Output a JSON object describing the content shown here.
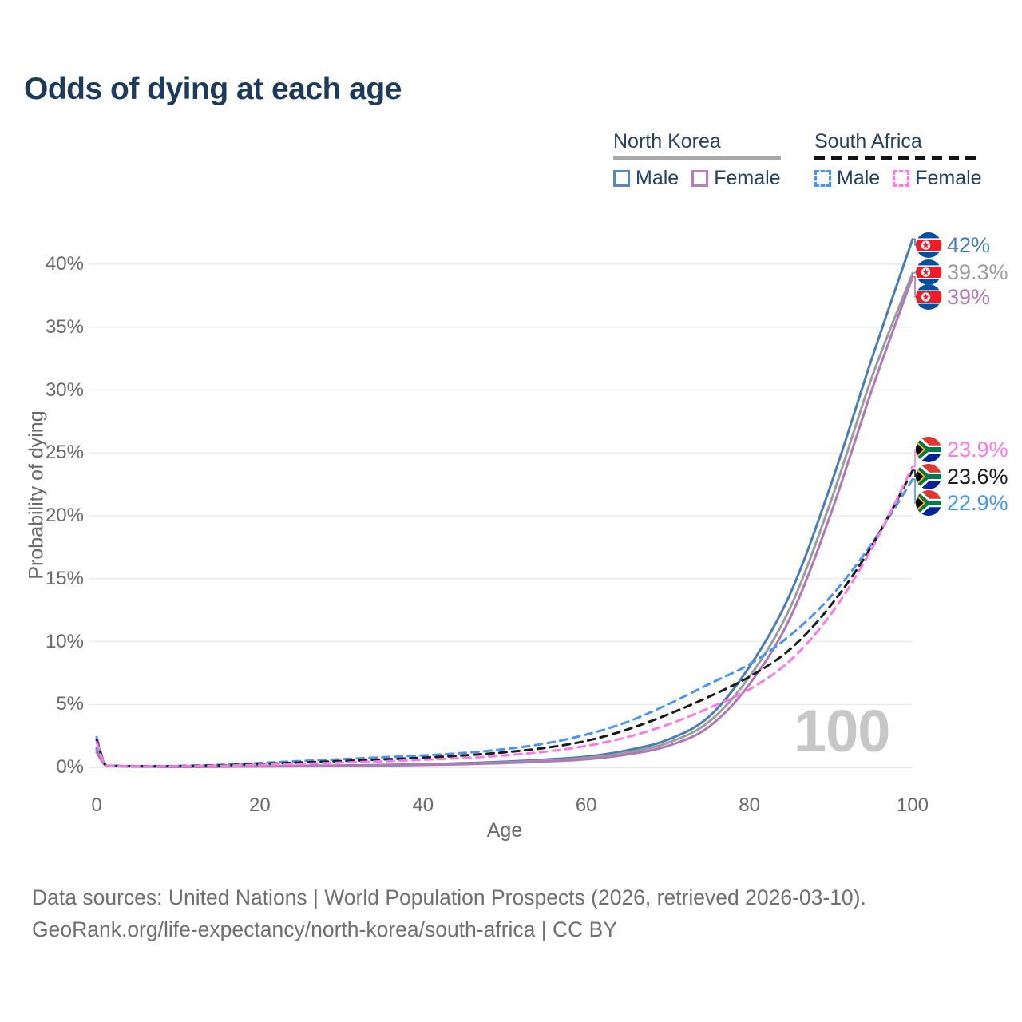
{
  "title": "Odds of dying at each age",
  "legend": {
    "groups": [
      {
        "name": "North Korea",
        "line_style": "solid",
        "underline_color": "#a8a8a8",
        "items": [
          {
            "label": "Male",
            "color": "#4a7cb6"
          },
          {
            "label": "Female",
            "color": "#b277b6"
          }
        ]
      },
      {
        "name": "South Africa",
        "line_style": "dashed",
        "underline_color": "#141414",
        "items": [
          {
            "label": "Male",
            "color": "#4b95f2"
          },
          {
            "label": "Female",
            "color": "#fb7be6"
          }
        ]
      }
    ]
  },
  "chart_data": {
    "type": "line",
    "title": "Odds of dying at each age",
    "xlabel": "Age",
    "ylabel": "Probability of dying",
    "xlim": [
      0,
      100
    ],
    "ylim_percent": [
      0,
      42.5
    ],
    "x_ticks": [
      0,
      20,
      40,
      60,
      80,
      100
    ],
    "y_ticks": [
      "0%",
      "5%",
      "10%",
      "15%",
      "20%",
      "25%",
      "30%",
      "35%",
      "40%"
    ],
    "grid": "horizontal",
    "legend_position": "top-right",
    "x": [
      0,
      1,
      2,
      5,
      10,
      15,
      20,
      25,
      30,
      35,
      40,
      45,
      50,
      55,
      60,
      65,
      70,
      75,
      80,
      85,
      90,
      95,
      100
    ],
    "series": [
      {
        "name": "North Korea Male",
        "color": "#4a7cb6",
        "dash": "solid",
        "values": [
          1.5,
          0.25,
          0.12,
          0.08,
          0.05,
          0.07,
          0.1,
          0.12,
          0.15,
          0.19,
          0.25,
          0.33,
          0.45,
          0.62,
          0.85,
          1.35,
          2.2,
          4.0,
          8.0,
          13.8,
          22.5,
          32.5,
          42.0
        ],
        "end_label": "42%"
      },
      {
        "name": "North Korea Both sexes",
        "color": "#9c9c9c",
        "dash": "solid",
        "values": [
          1.35,
          0.22,
          0.11,
          0.07,
          0.045,
          0.06,
          0.085,
          0.105,
          0.13,
          0.165,
          0.22,
          0.29,
          0.39,
          0.54,
          0.74,
          1.18,
          1.95,
          3.6,
          7.2,
          12.7,
          21.2,
          31.0,
          39.3
        ],
        "end_label": "39.3%"
      },
      {
        "name": "North Korea Female",
        "color": "#b277b6",
        "dash": "solid",
        "values": [
          1.2,
          0.2,
          0.1,
          0.06,
          0.04,
          0.05,
          0.07,
          0.09,
          0.11,
          0.14,
          0.19,
          0.25,
          0.34,
          0.47,
          0.64,
          1.02,
          1.7,
          3.2,
          6.6,
          11.9,
          20.2,
          30.0,
          39.0
        ],
        "end_label": "39%"
      },
      {
        "name": "South Africa Male",
        "color": "#4b95f2",
        "dash": "dashed",
        "values": [
          2.4,
          0.3,
          0.15,
          0.1,
          0.12,
          0.2,
          0.35,
          0.5,
          0.65,
          0.8,
          0.95,
          1.15,
          1.45,
          1.9,
          2.6,
          3.6,
          5.0,
          6.6,
          8.2,
          10.5,
          13.6,
          17.8,
          22.9
        ],
        "end_label": "22.9%"
      },
      {
        "name": "South Africa Both sexes",
        "color": "#1b1b1b",
        "dash": "dashed",
        "values": [
          2.2,
          0.28,
          0.13,
          0.09,
          0.1,
          0.16,
          0.27,
          0.39,
          0.5,
          0.63,
          0.77,
          0.95,
          1.2,
          1.55,
          2.1,
          3.0,
          4.2,
          5.6,
          7.2,
          9.4,
          12.9,
          17.6,
          23.6
        ],
        "end_label": "23.6%"
      },
      {
        "name": "South Africa Female",
        "color": "#fb7be6",
        "dash": "dashed",
        "values": [
          2.0,
          0.25,
          0.12,
          0.08,
          0.09,
          0.13,
          0.2,
          0.28,
          0.38,
          0.48,
          0.6,
          0.75,
          0.95,
          1.25,
          1.7,
          2.4,
          3.4,
          4.7,
          6.2,
          8.5,
          12.2,
          17.4,
          23.9
        ],
        "end_label": "23.9%"
      }
    ]
  },
  "end_labels": {
    "top": [
      {
        "text": "42%",
        "value": 42.0,
        "flag": "north-korea",
        "series": "North Korea Male",
        "color": "#4a7cb6"
      },
      {
        "text": "39.3%",
        "value": 39.3,
        "flag": "north-korea",
        "series": "North Korea Both sexes",
        "color": "#9c9c9c"
      },
      {
        "text": "39%",
        "value": 39.0,
        "flag": "north-korea",
        "series": "North Korea Female",
        "color": "#b277b6"
      }
    ],
    "bottom": [
      {
        "text": "23.9%",
        "value": 23.9,
        "flag": "south-africa",
        "series": "South Africa Female",
        "color": "#fb7be6"
      },
      {
        "text": "23.6%",
        "value": 23.6,
        "flag": "south-africa",
        "series": "South Africa Both sexes",
        "color": "#1b1b1b"
      },
      {
        "text": "22.9%",
        "value": 22.9,
        "flag": "south-africa",
        "series": "South Africa Male",
        "color": "#4b95f2"
      }
    ]
  },
  "watermark": "100",
  "footer": {
    "line1": "Data sources: United Nations | World Population Prospects (2026, retrieved 2026-03-10).",
    "line2": "GeoRank.org/life-expectancy/north-korea/south-africa | CC BY"
  }
}
